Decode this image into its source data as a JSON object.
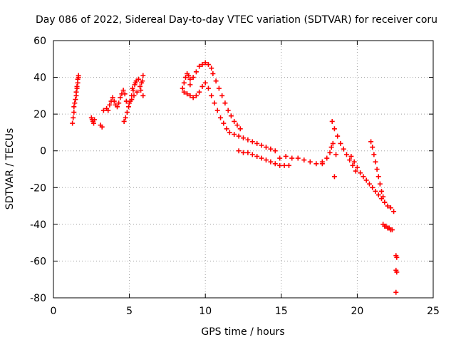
{
  "chart_data": {
    "type": "scatter",
    "title": "Day 086 of 2022, Sidereal Day-to-day VTEC variation (SDTVAR) for receiver coru",
    "xlabel": "GPS time / hours",
    "ylabel": "SDTVAR / TECUs",
    "xlim": [
      0,
      25
    ],
    "ylim": [
      -80,
      60
    ],
    "xticks": [
      0,
      5,
      10,
      15,
      20,
      25
    ],
    "yticks": [
      -80,
      -60,
      -40,
      -20,
      0,
      20,
      40,
      60
    ],
    "grid": true,
    "marker": "+",
    "color": "#ff0000",
    "series": [
      {
        "name": "SDTVAR",
        "points": [
          [
            1.25,
            15
          ],
          [
            1.3,
            18
          ],
          [
            1.35,
            21
          ],
          [
            1.35,
            24
          ],
          [
            1.4,
            26
          ],
          [
            1.45,
            28
          ],
          [
            1.5,
            30
          ],
          [
            1.5,
            32
          ],
          [
            1.55,
            34
          ],
          [
            1.55,
            35
          ],
          [
            1.6,
            37
          ],
          [
            1.6,
            39
          ],
          [
            1.65,
            40
          ],
          [
            1.65,
            41
          ],
          [
            2.5,
            18
          ],
          [
            2.55,
            17
          ],
          [
            2.6,
            16
          ],
          [
            2.65,
            15
          ],
          [
            2.7,
            17
          ],
          [
            3.1,
            14
          ],
          [
            3.2,
            13
          ],
          [
            3.3,
            22
          ],
          [
            3.5,
            23
          ],
          [
            3.6,
            22
          ],
          [
            3.7,
            25
          ],
          [
            3.8,
            27
          ],
          [
            3.9,
            29
          ],
          [
            4.0,
            27
          ],
          [
            4.1,
            25
          ],
          [
            4.2,
            24
          ],
          [
            4.3,
            26
          ],
          [
            4.4,
            29
          ],
          [
            4.5,
            31
          ],
          [
            4.6,
            33
          ],
          [
            4.7,
            31
          ],
          [
            4.8,
            27
          ],
          [
            4.65,
            16
          ],
          [
            4.75,
            18
          ],
          [
            4.85,
            21
          ],
          [
            4.95,
            24
          ],
          [
            5.05,
            27
          ],
          [
            5.15,
            30
          ],
          [
            5.25,
            33
          ],
          [
            5.35,
            36
          ],
          [
            5.45,
            38
          ],
          [
            5.0,
            26
          ],
          [
            5.15,
            28
          ],
          [
            5.3,
            30
          ],
          [
            5.5,
            32
          ],
          [
            5.7,
            35
          ],
          [
            5.85,
            38
          ],
          [
            5.9,
            41
          ],
          [
            5.2,
            34
          ],
          [
            5.4,
            37
          ],
          [
            5.6,
            39
          ],
          [
            5.8,
            37
          ],
          [
            5.75,
            33
          ],
          [
            5.9,
            30
          ],
          [
            8.5,
            34
          ],
          [
            8.6,
            37
          ],
          [
            8.7,
            40
          ],
          [
            8.8,
            42
          ],
          [
            8.9,
            41
          ],
          [
            9.0,
            39
          ],
          [
            8.6,
            32
          ],
          [
            8.8,
            31
          ],
          [
            9.0,
            30
          ],
          [
            9.2,
            29
          ],
          [
            9.4,
            30
          ],
          [
            9.6,
            32
          ],
          [
            9.8,
            35
          ],
          [
            9.0,
            36
          ],
          [
            9.2,
            40
          ],
          [
            9.4,
            43
          ],
          [
            9.6,
            46
          ],
          [
            9.8,
            47
          ],
          [
            10.0,
            48
          ],
          [
            10.2,
            47
          ],
          [
            10.4,
            45
          ],
          [
            10.5,
            42
          ],
          [
            10.7,
            38
          ],
          [
            10.9,
            34
          ],
          [
            11.1,
            30
          ],
          [
            11.3,
            26
          ],
          [
            11.5,
            22
          ],
          [
            11.7,
            19
          ],
          [
            11.9,
            16
          ],
          [
            12.1,
            14
          ],
          [
            12.3,
            12
          ],
          [
            10.0,
            37
          ],
          [
            10.2,
            34
          ],
          [
            10.4,
            30
          ],
          [
            10.6,
            26
          ],
          [
            10.8,
            22
          ],
          [
            11.0,
            18
          ],
          [
            11.2,
            15
          ],
          [
            11.4,
            12
          ],
          [
            11.6,
            10
          ],
          [
            11.9,
            9
          ],
          [
            12.2,
            8
          ],
          [
            12.5,
            7
          ],
          [
            12.8,
            6
          ],
          [
            13.1,
            5
          ],
          [
            13.4,
            4
          ],
          [
            13.7,
            3
          ],
          [
            14.0,
            2
          ],
          [
            14.3,
            1
          ],
          [
            14.6,
            0
          ],
          [
            12.2,
            0
          ],
          [
            12.5,
            -1
          ],
          [
            12.8,
            -1
          ],
          [
            13.1,
            -2
          ],
          [
            13.4,
            -3
          ],
          [
            13.7,
            -4
          ],
          [
            14.0,
            -5
          ],
          [
            14.3,
            -6
          ],
          [
            14.6,
            -7
          ],
          [
            14.9,
            -8
          ],
          [
            15.2,
            -8
          ],
          [
            15.5,
            -8
          ],
          [
            14.9,
            -4
          ],
          [
            15.3,
            -3
          ],
          [
            15.7,
            -4
          ],
          [
            16.1,
            -4
          ],
          [
            16.5,
            -5
          ],
          [
            16.9,
            -6
          ],
          [
            17.3,
            -7
          ],
          [
            17.7,
            -7
          ],
          [
            17.7,
            -6
          ],
          [
            18.0,
            -4
          ],
          [
            18.2,
            -1
          ],
          [
            18.3,
            2
          ],
          [
            18.4,
            4
          ],
          [
            18.6,
            -2
          ],
          [
            18.35,
            16
          ],
          [
            18.5,
            12
          ],
          [
            18.7,
            8
          ],
          [
            18.9,
            4
          ],
          [
            19.1,
            1
          ],
          [
            19.3,
            -2
          ],
          [
            19.5,
            -5
          ],
          [
            19.7,
            -8
          ],
          [
            19.9,
            -11
          ],
          [
            18.5,
            -14
          ],
          [
            19.6,
            -3
          ],
          [
            19.8,
            -6
          ],
          [
            20.0,
            -9
          ],
          [
            20.2,
            -12
          ],
          [
            20.4,
            -14
          ],
          [
            20.6,
            -16
          ],
          [
            20.8,
            -18
          ],
          [
            21.0,
            -20
          ],
          [
            21.2,
            -22
          ],
          [
            21.4,
            -24
          ],
          [
            21.6,
            -26
          ],
          [
            21.8,
            -28
          ],
          [
            22.0,
            -30
          ],
          [
            22.2,
            -31
          ],
          [
            22.4,
            -33
          ],
          [
            20.9,
            5
          ],
          [
            21.0,
            2
          ],
          [
            21.1,
            -2
          ],
          [
            21.2,
            -6
          ],
          [
            21.3,
            -10
          ],
          [
            21.4,
            -14
          ],
          [
            21.5,
            -18
          ],
          [
            21.6,
            -22
          ],
          [
            21.7,
            -25
          ],
          [
            21.8,
            -28
          ],
          [
            21.7,
            -40
          ],
          [
            21.8,
            -41
          ],
          [
            21.9,
            -41
          ],
          [
            22.0,
            -42
          ],
          [
            22.1,
            -42
          ],
          [
            22.2,
            -43
          ],
          [
            22.3,
            -43
          ],
          [
            22.55,
            -57
          ],
          [
            22.6,
            -58
          ],
          [
            22.55,
            -65
          ],
          [
            22.6,
            -66
          ],
          [
            22.55,
            -77
          ]
        ]
      }
    ]
  }
}
